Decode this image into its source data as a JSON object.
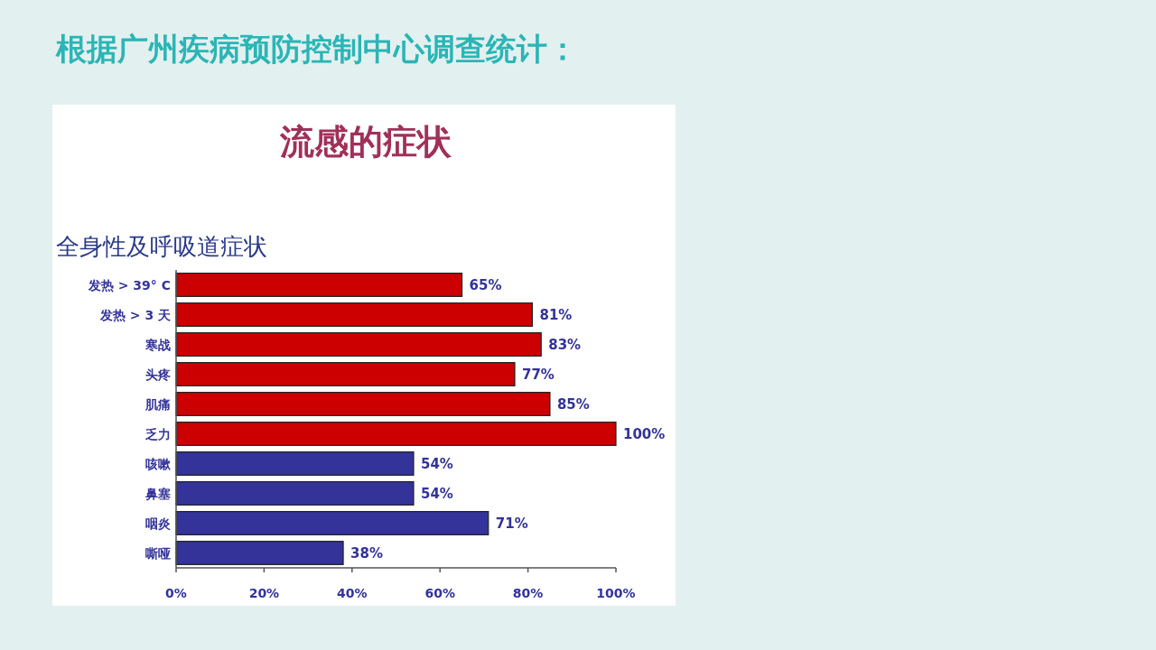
{
  "chart_data": {
    "type": "bar",
    "orientation": "horizontal",
    "title": "根据广州疾病预防控制中心调查统计：",
    "subtitle": "流感的症状",
    "annotations": [
      "全身性及呼吸道症状"
    ],
    "categories": [
      "发热 > 39° C",
      "发热 > 3 天",
      "寒战",
      "头疼",
      "肌痛",
      "乏力",
      "咳嗽",
      "鼻塞",
      "咽炎",
      "嘶哑"
    ],
    "values": [
      65,
      81,
      83,
      77,
      85,
      100,
      54,
      54,
      71,
      38
    ],
    "colors": [
      "#cc0000",
      "#cc0000",
      "#cc0000",
      "#cc0000",
      "#cc0000",
      "#cc0000",
      "#333399",
      "#333399",
      "#333399",
      "#333399"
    ],
    "xlim": [
      0,
      100
    ],
    "xticks": [
      {
        "value": 0,
        "label": "0%"
      },
      {
        "value": 20,
        "label": "20%"
      },
      {
        "value": 40,
        "label": "40%"
      },
      {
        "value": 60,
        "label": "60%"
      },
      {
        "value": 80,
        "label": "80%"
      },
      {
        "value": 100,
        "label": "100%"
      }
    ],
    "value_labels": [
      "65%",
      "81%",
      "83%",
      "77%",
      "85%",
      "100%",
      "54%",
      "54%",
      "71%",
      "38%"
    ],
    "grid": false
  }
}
